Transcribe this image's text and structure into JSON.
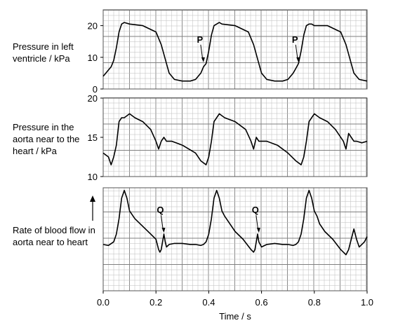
{
  "chart_data": [
    {
      "type": "line",
      "ylabel": "Pressure in left ventricle / kPa",
      "ytick_labels": [
        "0",
        "10",
        "20"
      ],
      "yticks": [
        0,
        10,
        20
      ],
      "ylim": [
        0,
        25
      ],
      "xlim": [
        0,
        1.0
      ],
      "x": [
        0.0,
        0.01,
        0.02,
        0.03,
        0.04,
        0.05,
        0.06,
        0.07,
        0.08,
        0.1,
        0.15,
        0.2,
        0.22,
        0.24,
        0.25,
        0.27,
        0.3,
        0.33,
        0.35,
        0.37,
        0.38,
        0.39,
        0.4,
        0.41,
        0.42,
        0.43,
        0.44,
        0.45,
        0.5,
        0.55,
        0.57,
        0.59,
        0.6,
        0.62,
        0.65,
        0.68,
        0.7,
        0.72,
        0.73,
        0.74,
        0.75,
        0.76,
        0.77,
        0.78,
        0.79,
        0.8,
        0.85,
        0.9,
        0.92,
        0.94,
        0.95,
        0.97,
        1.0
      ],
      "y": [
        4,
        5,
        6,
        7,
        9,
        13,
        18,
        20.5,
        21,
        20.5,
        20,
        18,
        14,
        8,
        5,
        3,
        2.5,
        2.5,
        3,
        5,
        7,
        8,
        12,
        17,
        20,
        20.5,
        21,
        20.5,
        20,
        18,
        14,
        8,
        5,
        3,
        2.5,
        2.5,
        3,
        5,
        6.5,
        8,
        12,
        17,
        20,
        20.5,
        20.5,
        20,
        20,
        18,
        14,
        8,
        5,
        3,
        2.5
      ],
      "annotations": [
        {
          "text": "P",
          "x": 0.38,
          "y": 8
        },
        {
          "text": "P",
          "x": 0.74,
          "y": 8
        }
      ]
    },
    {
      "type": "line",
      "ylabel": "Pressure in the aorta near to the heart / kPa",
      "ytick_labels": [
        "10",
        "15",
        "20"
      ],
      "yticks": [
        10,
        15,
        20
      ],
      "ylim": [
        10,
        20
      ],
      "xlim": [
        0,
        1.0
      ],
      "x": [
        0.0,
        0.02,
        0.03,
        0.04,
        0.05,
        0.06,
        0.07,
        0.08,
        0.1,
        0.12,
        0.15,
        0.18,
        0.2,
        0.21,
        0.22,
        0.23,
        0.24,
        0.26,
        0.3,
        0.35,
        0.37,
        0.39,
        0.4,
        0.41,
        0.42,
        0.43,
        0.44,
        0.46,
        0.5,
        0.54,
        0.56,
        0.57,
        0.58,
        0.59,
        0.6,
        0.62,
        0.66,
        0.7,
        0.73,
        0.75,
        0.76,
        0.77,
        0.78,
        0.79,
        0.8,
        0.82,
        0.85,
        0.88,
        0.91,
        0.92,
        0.93,
        0.94,
        0.95,
        0.96,
        0.98,
        1.0
      ],
      "y": [
        13,
        12.5,
        11.5,
        12.5,
        14,
        17,
        17.5,
        17.5,
        18,
        17.5,
        17,
        16,
        14.5,
        13.5,
        14.5,
        15,
        14.5,
        14.5,
        14,
        13,
        12,
        11.5,
        12.5,
        14.5,
        17,
        17.5,
        18,
        17.5,
        17,
        16,
        14.5,
        13.5,
        15,
        14.5,
        14.5,
        14.5,
        14,
        13,
        12,
        11.5,
        12.5,
        14.5,
        17,
        17.5,
        18,
        17.5,
        17,
        16,
        14.5,
        13.5,
        15.5,
        15,
        14.5,
        14.5,
        14.3,
        14.5
      ],
      "annotations": []
    },
    {
      "type": "line",
      "ylabel": "Rate of blood flow in aorta near to heart",
      "xlabel": "Time / s",
      "xtick_labels": [
        "0.0",
        "0.2",
        "0.4",
        "0.6",
        "0.8",
        "1.0"
      ],
      "xticks": [
        0.0,
        0.2,
        0.4,
        0.6,
        0.8,
        1.0
      ],
      "ylim": [
        -1,
        1
      ],
      "xlim": [
        0,
        1.0
      ],
      "x": [
        0.0,
        0.02,
        0.04,
        0.05,
        0.06,
        0.07,
        0.08,
        0.09,
        0.1,
        0.12,
        0.15,
        0.18,
        0.2,
        0.21,
        0.215,
        0.22,
        0.225,
        0.23,
        0.235,
        0.24,
        0.25,
        0.27,
        0.3,
        0.33,
        0.35,
        0.37,
        0.38,
        0.39,
        0.4,
        0.41,
        0.42,
        0.43,
        0.44,
        0.45,
        0.46,
        0.48,
        0.5,
        0.53,
        0.56,
        0.57,
        0.575,
        0.58,
        0.585,
        0.59,
        0.6,
        0.62,
        0.65,
        0.68,
        0.7,
        0.72,
        0.73,
        0.74,
        0.75,
        0.76,
        0.77,
        0.78,
        0.79,
        0.8,
        0.81,
        0.82,
        0.84,
        0.87,
        0.9,
        0.92,
        0.93,
        0.94,
        0.95,
        0.96,
        0.97,
        0.98,
        0.99,
        1.0
      ],
      "y": [
        -0.1,
        -0.12,
        -0.05,
        0.1,
        0.4,
        0.8,
        0.95,
        0.8,
        0.55,
        0.4,
        0.25,
        0.1,
        0.0,
        -0.2,
        -0.25,
        -0.2,
        -0.05,
        0.1,
        -0.05,
        -0.15,
        -0.1,
        -0.08,
        -0.08,
        -0.1,
        -0.1,
        -0.12,
        -0.1,
        -0.05,
        0.1,
        0.4,
        0.8,
        0.95,
        0.8,
        0.55,
        0.45,
        0.3,
        0.15,
        0.0,
        -0.2,
        -0.25,
        -0.2,
        -0.05,
        0.1,
        -0.05,
        -0.15,
        -0.1,
        -0.08,
        -0.1,
        -0.1,
        -0.12,
        -0.1,
        -0.05,
        0.1,
        0.4,
        0.8,
        0.95,
        0.8,
        0.55,
        0.45,
        0.3,
        0.15,
        0.0,
        -0.2,
        -0.3,
        -0.2,
        0.0,
        0.2,
        0.0,
        -0.15,
        -0.1,
        -0.05,
        0.05
      ],
      "annotations": [
        {
          "text": "Q",
          "x": 0.23,
          "y": 0.1
        },
        {
          "text": "Q",
          "x": 0.59,
          "y": 0.1
        }
      ]
    }
  ],
  "labels": {
    "panel1": "Pressure in left ventricle / kPa",
    "panel2": "Pressure in the aorta near to the heart / kPa",
    "panel3": "Rate of blood flow in aorta near to heart",
    "xaxis": "Time / s"
  },
  "colors": {
    "grid_minor": "#bdbdbd",
    "grid_major": "#7f7f7f",
    "trace": "#000000"
  }
}
